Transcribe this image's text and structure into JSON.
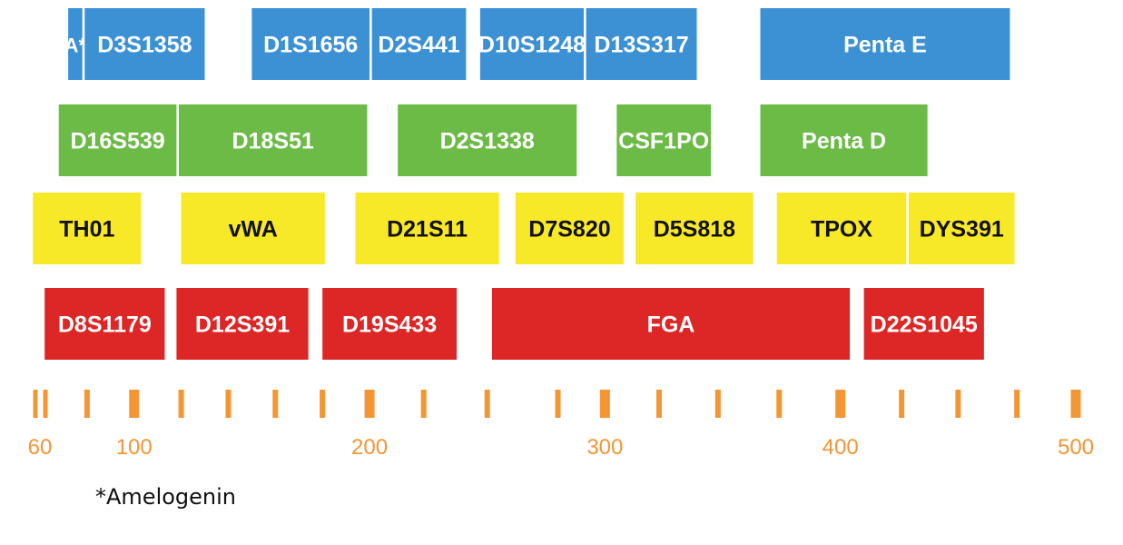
{
  "colors": {
    "blue": "#3b91d4",
    "green": "#6bbb46",
    "yellow": "#f8e928",
    "red": "#dd2626",
    "orange": "#f39634",
    "text_dark": "#111111",
    "text_light": "#ffffff"
  },
  "rows": [
    {
      "dye": "blue",
      "markers": [
        {
          "label": "A*",
          "start": 72,
          "end": 78,
          "amelogenin": true
        },
        {
          "label": "D3S1358",
          "start": 79,
          "end": 130
        },
        {
          "label": "D1S1656",
          "start": 150,
          "end": 200
        },
        {
          "label": "D2S441",
          "start": 201,
          "end": 241
        },
        {
          "label": "D10S1248",
          "start": 247,
          "end": 291
        },
        {
          "label": "D13S317",
          "start": 292,
          "end": 339
        },
        {
          "label": "Penta E",
          "start": 366,
          "end": 472
        }
      ]
    },
    {
      "dye": "green",
      "markers": [
        {
          "label": "D16S539",
          "start": 68,
          "end": 118
        },
        {
          "label": "D18S51",
          "start": 119,
          "end": 199
        },
        {
          "label": "D2S1338",
          "start": 212,
          "end": 288
        },
        {
          "label": "CSF1PO",
          "start": 305,
          "end": 345
        },
        {
          "label": "Penta D",
          "start": 366,
          "end": 437
        }
      ]
    },
    {
      "dye": "yellow",
      "markers": [
        {
          "label": "TH01",
          "start": 57,
          "end": 103
        },
        {
          "label": "vWA",
          "start": 120,
          "end": 181
        },
        {
          "label": "D21S11",
          "start": 194,
          "end": 255
        },
        {
          "label": "D7S820",
          "start": 262,
          "end": 308
        },
        {
          "label": "D5S818",
          "start": 313,
          "end": 363
        },
        {
          "label": "TPOX",
          "start": 373,
          "end": 428
        },
        {
          "label": "DYS391",
          "start": 429,
          "end": 474
        }
      ]
    },
    {
      "dye": "red",
      "markers": [
        {
          "label": "D8S1179",
          "start": 62,
          "end": 113
        },
        {
          "label": "D12S391",
          "start": 118,
          "end": 174
        },
        {
          "label": "D19S433",
          "start": 180,
          "end": 237
        },
        {
          "label": "FGA",
          "start": 252,
          "end": 404
        },
        {
          "label": "D22S1045",
          "start": 410,
          "end": 461
        }
      ]
    }
  ],
  "scale": {
    "min": 60,
    "max": 500,
    "labels": [
      "60",
      "100",
      "200",
      "300",
      "400",
      "500"
    ],
    "label_values": [
      60,
      100,
      200,
      300,
      400,
      500
    ],
    "ticks": [
      60,
      80,
      100,
      120,
      140,
      160,
      180,
      200,
      223,
      250,
      280,
      300,
      323,
      348,
      374,
      400,
      426,
      450,
      475,
      500
    ],
    "major_ticks": [
      100,
      200,
      300,
      400,
      500
    ]
  },
  "footnote": "*Amelogenin"
}
